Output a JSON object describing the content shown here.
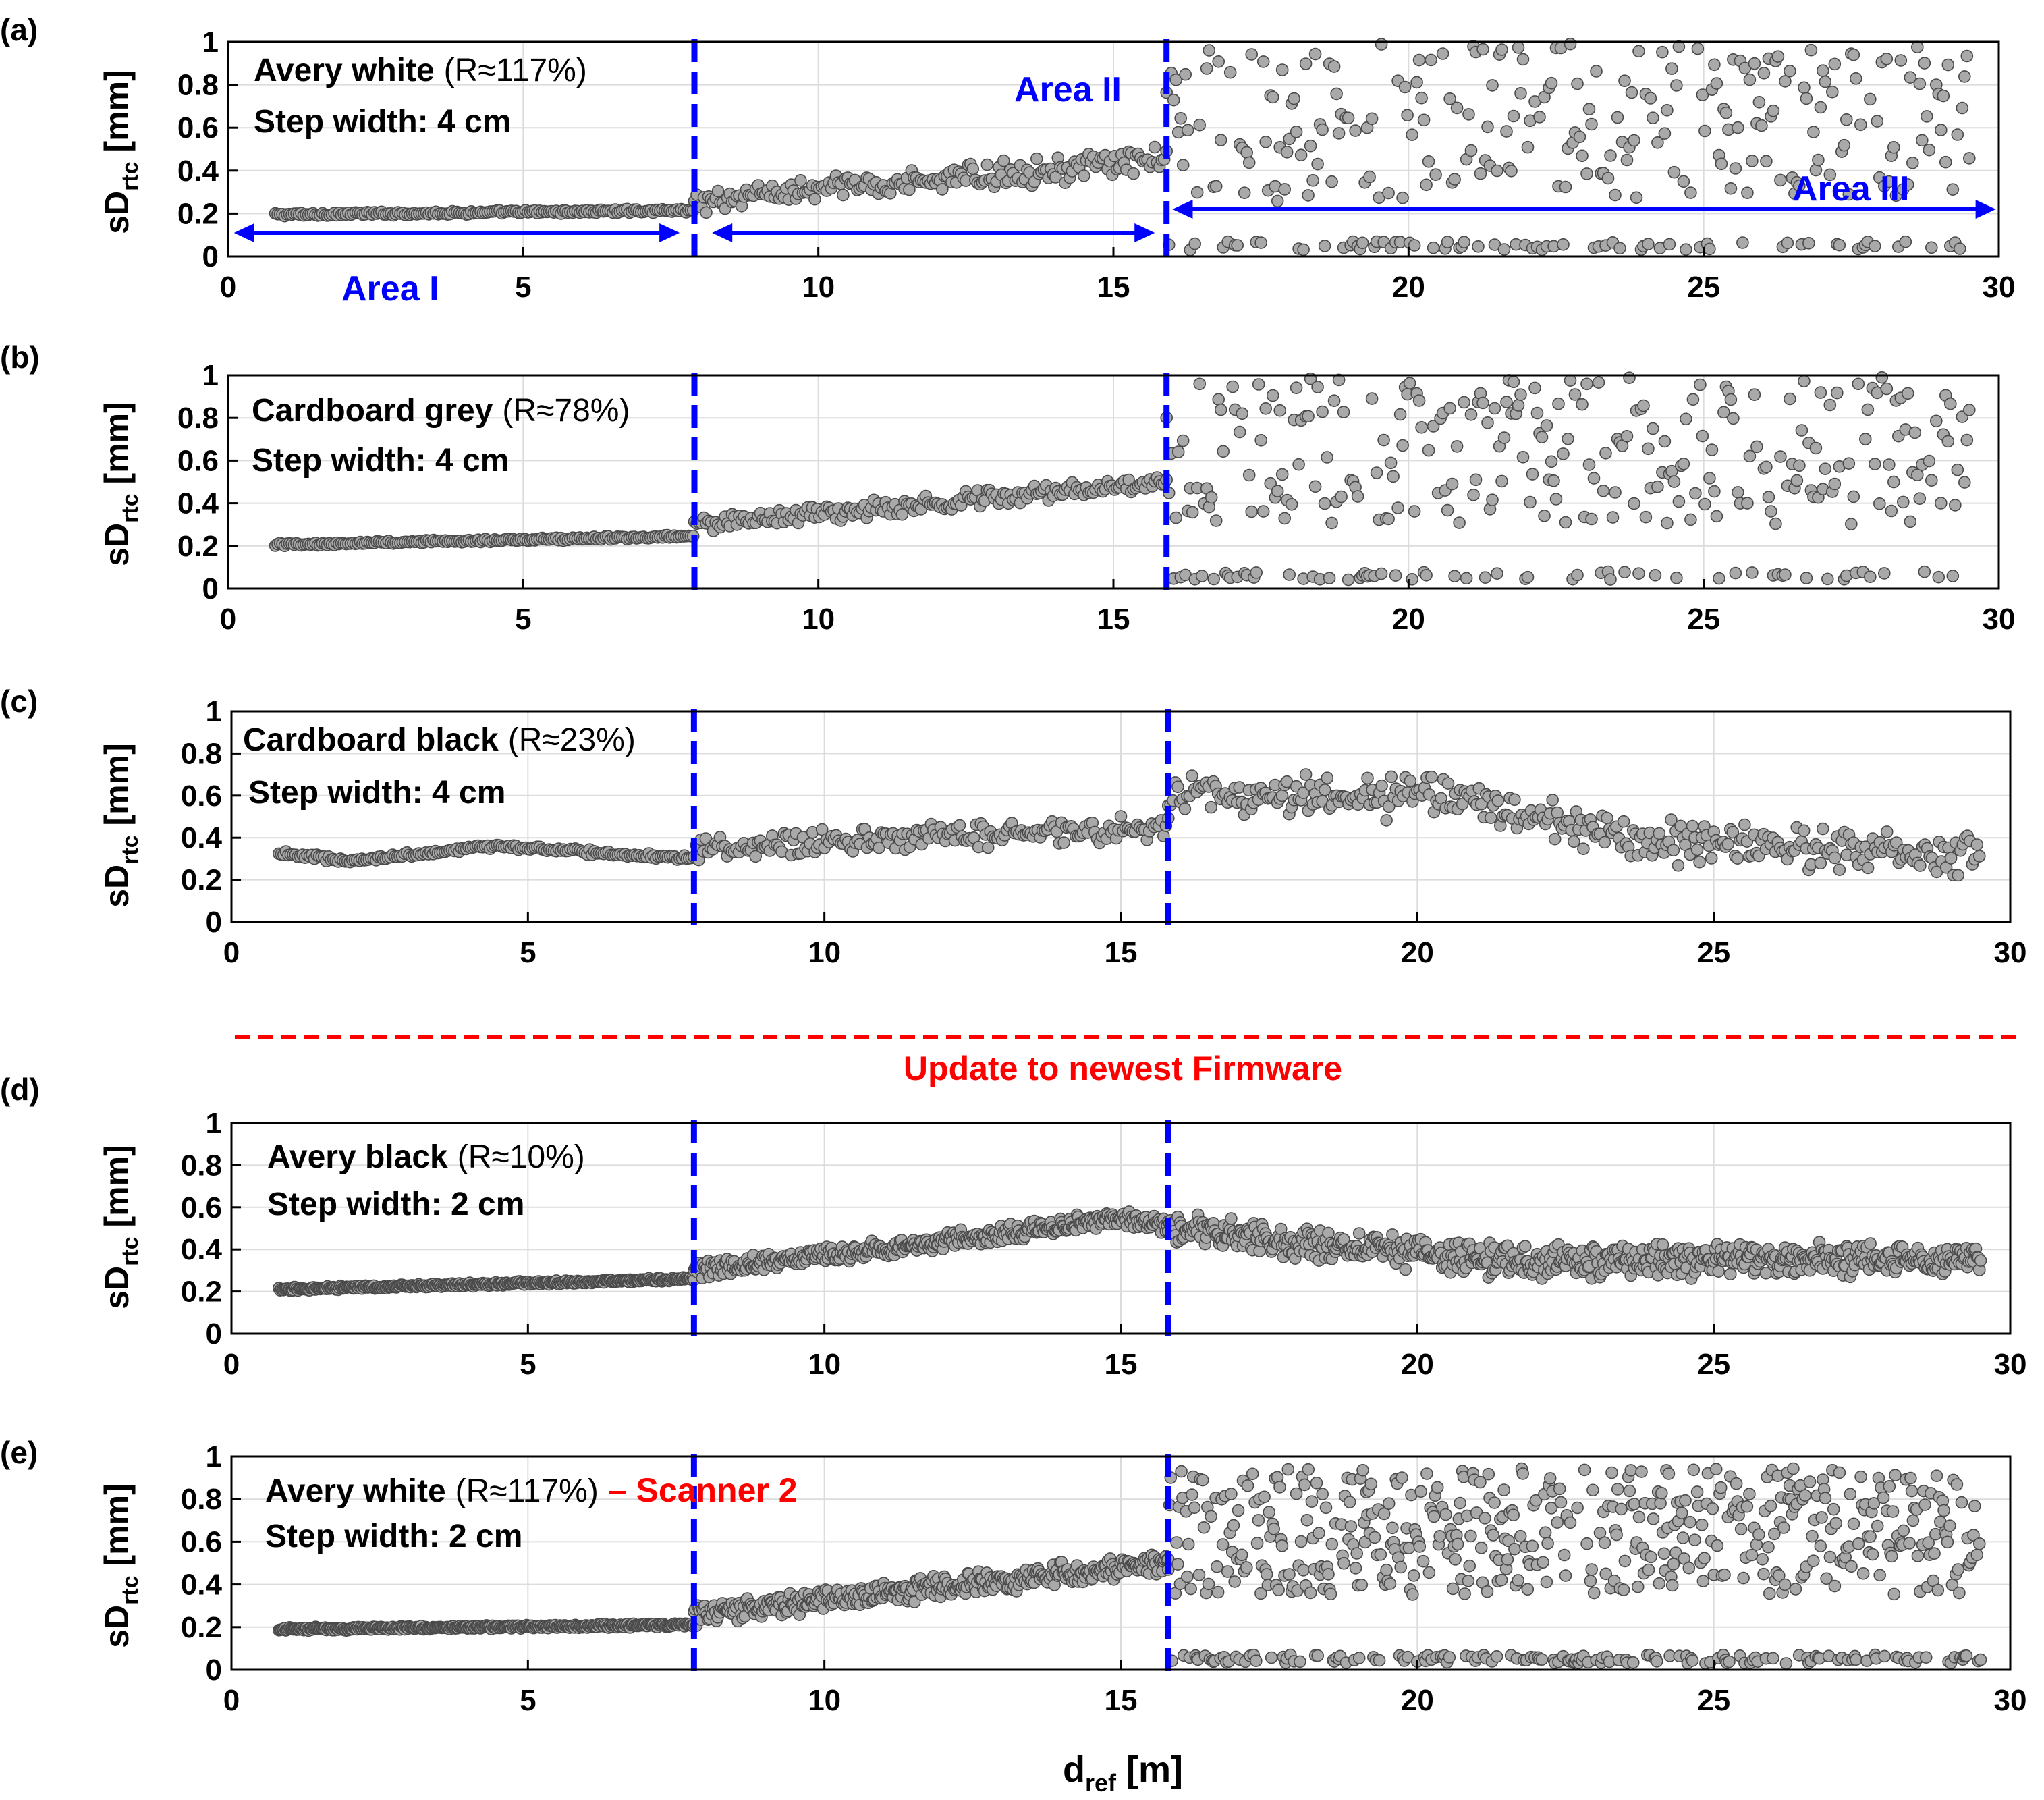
{
  "figure": {
    "xlabel_main": "d",
    "xlabel_sub": "ref",
    "xlabel_unit": " [m]",
    "ylabel_main": "sD",
    "ylabel_sub": "rtc",
    "ylabel_unit": " [mm]",
    "firmware_note": "Update to newest Firmware",
    "colors": {
      "marker_fill": "#a9a9a9",
      "marker_edge": "#4a4a4a",
      "boundary": "#0000ff",
      "firmware_line": "#ff0000",
      "grid": "#dcdcdc"
    }
  },
  "chart_data": [
    {
      "id": "a",
      "panel_label": "(a)",
      "type": "scatter",
      "material": "Avery white",
      "reflectance": "(R≈117%)",
      "suffix": "",
      "step_width": "Step width: 4 cm",
      "xlim": [
        0,
        30
      ],
      "ylim": [
        0,
        1
      ],
      "xticks": [
        "0",
        "5",
        "10",
        "15",
        "20",
        "25",
        "30"
      ],
      "yticks": [
        "0",
        "0.2",
        "0.4",
        "0.6",
        "0.8",
        "1"
      ],
      "boundaries": [
        7.9,
        15.9
      ],
      "areas": {
        "area_1": "Area I",
        "area_2": "Area II",
        "area_3": "Area III"
      },
      "series_segments": [
        {
          "region": "I",
          "x_range": [
            0.8,
            7.9
          ],
          "step": 0.04,
          "trend": [
            [
              0.8,
              0.195
            ],
            [
              7.9,
              0.215
            ]
          ],
          "noise": 0.01
        },
        {
          "region": "II",
          "x_range": [
            7.9,
            15.9
          ],
          "step": 0.04,
          "trend": [
            [
              7.9,
              0.26
            ],
            [
              15.9,
              0.45
            ]
          ],
          "noise": 0.07
        },
        {
          "region": "III",
          "x_range": [
            15.9,
            29.5
          ],
          "step": 0.04,
          "cluster_high": [
            0.25,
            1.0
          ],
          "cluster_low": 0.05
        }
      ]
    },
    {
      "id": "b",
      "panel_label": "(b)",
      "type": "scatter",
      "material": "Cardboard grey",
      "reflectance": "(R≈78%)",
      "suffix": "",
      "step_width": "Step width: 4 cm",
      "xlim": [
        0,
        30
      ],
      "ylim": [
        0,
        1
      ],
      "xticks": [
        "0",
        "5",
        "10",
        "15",
        "20",
        "25",
        "30"
      ],
      "yticks": [
        "0",
        "0.2",
        "0.4",
        "0.6",
        "0.8",
        "1"
      ],
      "boundaries": [
        7.9,
        15.9
      ],
      "series_segments": [
        {
          "region": "I",
          "x_range": [
            0.8,
            7.9
          ],
          "step": 0.04,
          "trend": [
            [
              0.8,
              0.205
            ],
            [
              7.9,
              0.245
            ]
          ],
          "noise": 0.01
        },
        {
          "region": "II",
          "x_range": [
            7.9,
            15.9
          ],
          "step": 0.04,
          "trend": [
            [
              7.9,
              0.3
            ],
            [
              15.9,
              0.5
            ]
          ],
          "noise": 0.05
        },
        {
          "region": "III",
          "x_range": [
            15.9,
            29.5
          ],
          "step": 0.04,
          "cluster_high": [
            0.3,
            1.0
          ],
          "cluster_low": 0.06
        }
      ]
    },
    {
      "id": "c",
      "panel_label": "(c)",
      "type": "scatter",
      "material": "Cardboard black",
      "reflectance": "(R≈23%)",
      "suffix": "",
      "step_width": "Step width: 4 cm",
      "xlim": [
        0,
        30
      ],
      "ylim": [
        0,
        1
      ],
      "xticks": [
        "0",
        "5",
        "10",
        "15",
        "20",
        "25",
        "30"
      ],
      "yticks": [
        "0",
        "0.2",
        "0.4",
        "0.6",
        "0.8",
        "1"
      ],
      "boundaries": [
        7.8,
        15.8
      ],
      "series_segments": [
        {
          "region": "I",
          "x_range": [
            0.8,
            7.8
          ],
          "step": 0.04,
          "trend": [
            [
              0.8,
              0.33
            ],
            [
              2.0,
              0.29
            ],
            [
              4.5,
              0.36
            ],
            [
              7.8,
              0.3
            ]
          ],
          "noise": 0.015
        },
        {
          "region": "II",
          "x_range": [
            7.8,
            15.8
          ],
          "step": 0.04,
          "trend": [
            [
              7.8,
              0.35
            ],
            [
              15.8,
              0.45
            ]
          ],
          "noise": 0.07
        },
        {
          "region": "III",
          "x_range": [
            15.8,
            29.5
          ],
          "step": 0.04,
          "trend": [
            [
              15.8,
              0.6
            ],
            [
              20.5,
              0.6
            ],
            [
              24,
              0.38
            ],
            [
              29.5,
              0.32
            ]
          ],
          "noise": 0.12
        }
      ]
    },
    {
      "id": "d",
      "panel_label": "(d)",
      "type": "scatter",
      "material": "Avery black",
      "reflectance": "(R≈10%)",
      "suffix": "",
      "step_width": "Step width: 2 cm",
      "xlim": [
        0,
        30
      ],
      "ylim": [
        0,
        1
      ],
      "xticks": [
        "0",
        "5",
        "10",
        "15",
        "20",
        "25",
        "30"
      ],
      "yticks": [
        "0",
        "0.2",
        "0.4",
        "0.6",
        "0.8",
        "1"
      ],
      "boundaries": [
        7.8,
        15.8
      ],
      "series_segments": [
        {
          "region": "I",
          "x_range": [
            0.8,
            7.8
          ],
          "step": 0.02,
          "trend": [
            [
              0.8,
              0.21
            ],
            [
              7.8,
              0.26
            ]
          ],
          "noise": 0.01
        },
        {
          "region": "II",
          "x_range": [
            7.8,
            15.8
          ],
          "step": 0.02,
          "trend": [
            [
              7.8,
              0.3
            ],
            [
              11,
              0.4
            ],
            [
              15,
              0.55
            ],
            [
              15.8,
              0.52
            ]
          ],
          "noise": 0.05
        },
        {
          "region": "III",
          "x_range": [
            15.8,
            29.5
          ],
          "step": 0.02,
          "trend": [
            [
              15.8,
              0.5
            ],
            [
              19,
              0.4
            ],
            [
              22,
              0.34
            ],
            [
              29.5,
              0.36
            ]
          ],
          "noise": 0.09
        }
      ]
    },
    {
      "id": "e",
      "panel_label": "(e)",
      "type": "scatter",
      "material": "Avery white",
      "reflectance": "(R≈117%)",
      "suffix": "– Scanner 2",
      "step_width": "Step width: 2 cm",
      "xlim": [
        0,
        30
      ],
      "ylim": [
        0,
        1
      ],
      "xticks": [
        "0",
        "5",
        "10",
        "15",
        "20",
        "25",
        "30"
      ],
      "yticks": [
        "0",
        "0.2",
        "0.4",
        "0.6",
        "0.8",
        "1"
      ],
      "boundaries": [
        7.8,
        15.8
      ],
      "series_segments": [
        {
          "region": "I",
          "x_range": [
            0.8,
            7.8
          ],
          "step": 0.02,
          "trend": [
            [
              0.8,
              0.19
            ],
            [
              7.8,
              0.21
            ]
          ],
          "noise": 0.01
        },
        {
          "region": "II",
          "x_range": [
            7.8,
            15.8
          ],
          "step": 0.02,
          "trend": [
            [
              7.8,
              0.26
            ],
            [
              15.8,
              0.5
            ]
          ],
          "noise": 0.06
        },
        {
          "region": "III",
          "x_range": [
            15.8,
            29.5
          ],
          "step": 0.02,
          "cluster_high": [
            0.35,
            0.95
          ],
          "cluster_low": 0.05
        }
      ]
    }
  ]
}
